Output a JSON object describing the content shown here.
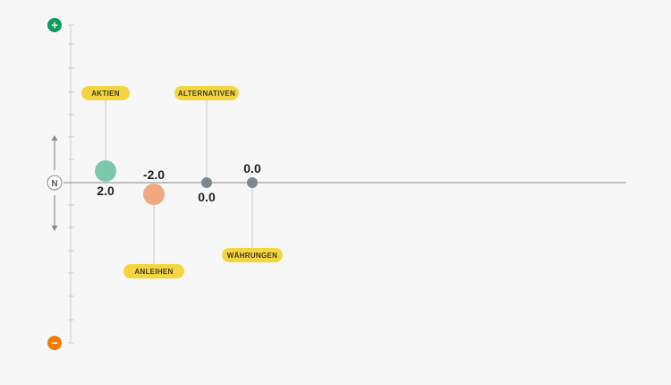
{
  "chart_data": {
    "type": "scatter",
    "title": "",
    "xlabel": "",
    "ylabel": "",
    "ylim": [
      -7,
      7
    ],
    "grid": false,
    "series": [
      {
        "label": "AKTIEN",
        "value": 2.0,
        "value_text": "2.0",
        "color": "#7dc8ad",
        "size": "large"
      },
      {
        "label": "ANLEIHEN",
        "value": -2.0,
        "value_text": "-2.0",
        "color": "#f0a882",
        "size": "large"
      },
      {
        "label": "ALTERNATIVEN",
        "value": 0.0,
        "value_text": "0.0",
        "color": "#7e878c",
        "size": "small"
      },
      {
        "label": "WÄHRUNGEN",
        "value": 0.0,
        "value_text": "0.0",
        "color": "#7e878c",
        "size": "small"
      }
    ]
  },
  "scale": {
    "top_icon": "plus-icon",
    "top_symbol": "+",
    "top_color": "#0e9b5e",
    "neutral_icon": "neutral-icon",
    "neutral_label": "N",
    "bottom_icon": "minus-icon",
    "bottom_symbol": "−",
    "bottom_color": "#f07d00"
  },
  "colors": {
    "badge": "#f5d53f",
    "baseline": "#8a8a8a",
    "scale_line": "#c9c9c9",
    "leader": "#c8c8c8"
  }
}
